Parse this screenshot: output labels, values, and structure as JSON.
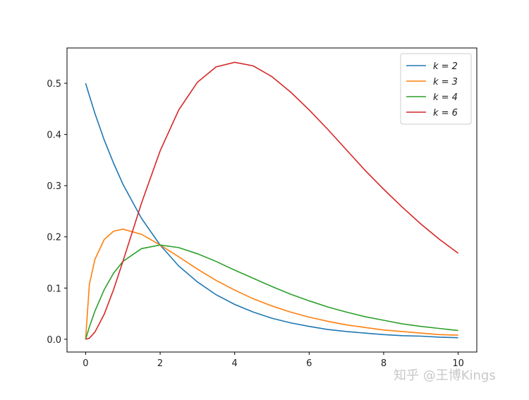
{
  "chart_data": {
    "type": "line",
    "x": [
      0,
      0.1,
      0.25,
      0.5,
      0.75,
      1,
      1.5,
      2,
      2.5,
      3,
      3.5,
      4,
      4.5,
      5,
      5.5,
      6,
      6.5,
      7,
      7.5,
      8,
      8.5,
      9,
      9.5,
      10
    ],
    "series": [
      {
        "name": "k = 2",
        "color": "#1f77b4",
        "values": [
          0.5,
          0.476,
          0.441,
          0.389,
          0.344,
          0.303,
          0.236,
          0.184,
          0.143,
          0.112,
          0.087,
          0.068,
          0.053,
          0.041,
          0.032,
          0.025,
          0.019,
          0.015,
          0.012,
          0.009,
          0.007,
          0.006,
          0.004,
          0.003
        ]
      },
      {
        "name": "k = 3",
        "color": "#ff7f0e",
        "values": [
          0,
          0.107,
          0.156,
          0.195,
          0.211,
          0.215,
          0.205,
          0.184,
          0.161,
          0.137,
          0.115,
          0.096,
          0.079,
          0.065,
          0.053,
          0.043,
          0.035,
          0.028,
          0.023,
          0.018,
          0.015,
          0.012,
          0.009,
          0.008
        ]
      },
      {
        "name": "k = 4",
        "color": "#2ca02c",
        "values": [
          0,
          0.024,
          0.055,
          0.097,
          0.129,
          0.152,
          0.177,
          0.184,
          0.179,
          0.167,
          0.152,
          0.135,
          0.119,
          0.103,
          0.088,
          0.075,
          0.063,
          0.053,
          0.044,
          0.037,
          0.03,
          0.025,
          0.021,
          0.017
        ]
      },
      {
        "name": "k = 6",
        "color": "#d62728",
        "values": [
          0,
          0.002,
          0.014,
          0.049,
          0.097,
          0.152,
          0.266,
          0.368,
          0.448,
          0.502,
          0.532,
          0.541,
          0.534,
          0.513,
          0.483,
          0.448,
          0.41,
          0.37,
          0.33,
          0.293,
          0.258,
          0.225,
          0.195,
          0.168
        ]
      }
    ],
    "xlim": [
      -0.5,
      10.5
    ],
    "xticks": [
      0,
      2,
      4,
      6,
      8,
      10
    ],
    "ylim": [
      -0.025,
      0.569
    ],
    "yticks": [
      {
        "value": 0,
        "label": "0.0"
      },
      {
        "value": 0.1,
        "label": "0.1"
      },
      {
        "value": 0.2,
        "label": "0.2"
      },
      {
        "value": 0.3,
        "label": "0.3"
      },
      {
        "value": 0.4,
        "label": "0.4"
      },
      {
        "value": 0.5,
        "label": "0.5"
      }
    ],
    "legend": "upper right",
    "watermark": "知乎 @王博Kings"
  }
}
